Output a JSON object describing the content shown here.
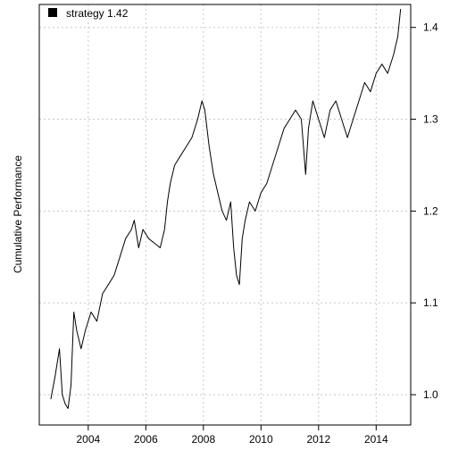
{
  "chart_data": {
    "type": "line",
    "ylabel": "Cumulative Performance",
    "xlim": [
      2002.3,
      2015.2
    ],
    "ylim": [
      0.967,
      1.425
    ],
    "x_ticks": [
      2004,
      2006,
      2008,
      2010,
      2012,
      2014
    ],
    "x_tick_labels": [
      "2004",
      "2006",
      "2008",
      "2010",
      "2012",
      "2014"
    ],
    "y_ticks": [
      1.0,
      1.1,
      1.2,
      1.3,
      1.4
    ],
    "y_tick_labels": [
      "1.0",
      "1.1",
      "1.2",
      "1.3",
      "1.4"
    ],
    "grid": true,
    "legend_position": "top-left",
    "series": [
      {
        "name": "strategy 1.42",
        "color": "#000000",
        "x": [
          2002.7,
          2002.85,
          2003.0,
          2003.1,
          2003.2,
          2003.3,
          2003.4,
          2003.5,
          2003.6,
          2003.75,
          2003.9,
          2004.1,
          2004.3,
          2004.5,
          2004.7,
          2004.9,
          2005.1,
          2005.3,
          2005.5,
          2005.6,
          2005.75,
          2005.9,
          2006.1,
          2006.3,
          2006.5,
          2006.65,
          2006.75,
          2006.85,
          2007.0,
          2007.2,
          2007.4,
          2007.6,
          2007.8,
          2007.95,
          2008.05,
          2008.2,
          2008.35,
          2008.5,
          2008.65,
          2008.8,
          2008.95,
          2009.05,
          2009.15,
          2009.25,
          2009.35,
          2009.45,
          2009.6,
          2009.8,
          2010.0,
          2010.2,
          2010.4,
          2010.6,
          2010.8,
          2011.0,
          2011.2,
          2011.4,
          2011.55,
          2011.65,
          2011.8,
          2012.0,
          2012.2,
          2012.4,
          2012.6,
          2012.8,
          2013.0,
          2013.2,
          2013.4,
          2013.6,
          2013.8,
          2014.0,
          2014.2,
          2014.4,
          2014.6,
          2014.75,
          2014.85
        ],
        "y": [
          0.995,
          1.02,
          1.05,
          1.0,
          0.99,
          0.985,
          1.01,
          1.09,
          1.07,
          1.05,
          1.07,
          1.09,
          1.08,
          1.11,
          1.12,
          1.13,
          1.15,
          1.17,
          1.18,
          1.19,
          1.16,
          1.18,
          1.17,
          1.165,
          1.16,
          1.18,
          1.21,
          1.23,
          1.25,
          1.26,
          1.27,
          1.28,
          1.3,
          1.32,
          1.31,
          1.27,
          1.24,
          1.22,
          1.2,
          1.19,
          1.21,
          1.16,
          1.13,
          1.12,
          1.17,
          1.19,
          1.21,
          1.2,
          1.22,
          1.23,
          1.25,
          1.27,
          1.29,
          1.3,
          1.31,
          1.3,
          1.24,
          1.29,
          1.32,
          1.3,
          1.28,
          1.31,
          1.32,
          1.3,
          1.28,
          1.3,
          1.32,
          1.34,
          1.33,
          1.35,
          1.36,
          1.35,
          1.37,
          1.39,
          1.42
        ]
      }
    ]
  }
}
